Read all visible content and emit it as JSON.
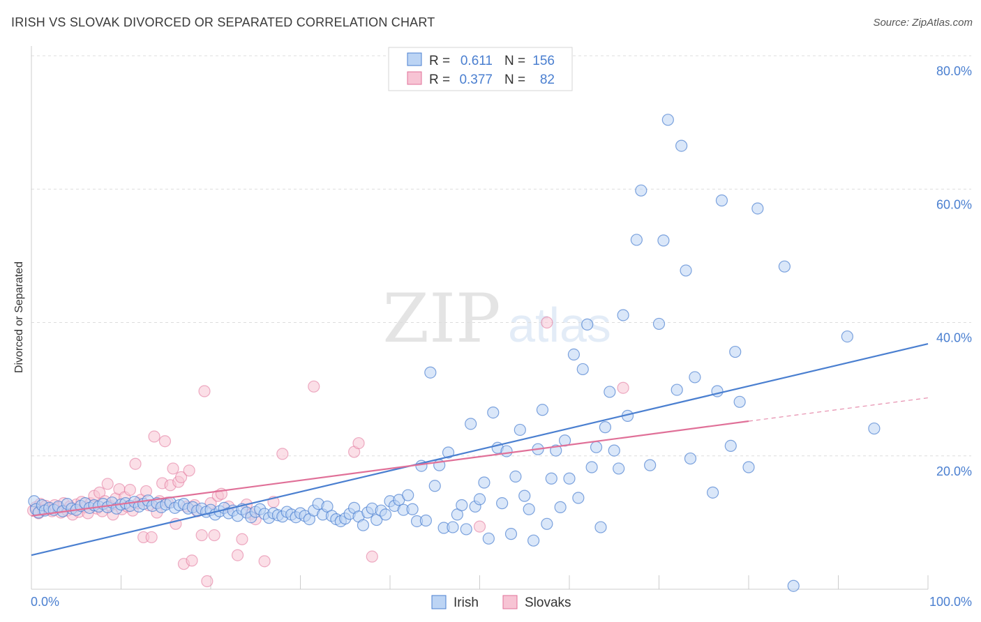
{
  "header": {
    "title": "IRISH VS SLOVAK DIVORCED OR SEPARATED CORRELATION CHART",
    "source": "Source: ZipAtlas.com"
  },
  "watermark": {
    "zip": "ZIP",
    "atlas": "atlas"
  },
  "legend": {
    "rows": [
      {
        "r_label": "R =",
        "r_value": "0.611",
        "n_label": "N =",
        "n_value": "156"
      },
      {
        "r_label": "R =",
        "r_value": "0.377",
        "n_label": "N =",
        "n_value": "82"
      }
    ]
  },
  "bottom_legend": {
    "irish": "Irish",
    "slovaks": "Slovaks"
  },
  "chart_data": {
    "type": "scatter",
    "title": "IRISH VS SLOVAK DIVORCED OR SEPARATED CORRELATION CHART",
    "xlabel": "",
    "ylabel": "Divorced or Separated",
    "xlim": [
      0,
      100
    ],
    "ylim": [
      0,
      80
    ],
    "y_ticks": [
      "20.0%",
      "40.0%",
      "60.0%",
      "80.0%"
    ],
    "x_tick_labels": [
      "0.0%",
      "100.0%"
    ],
    "grid": true,
    "legend_position": "top-center",
    "colors": {
      "irish": "#4a7fd0",
      "irish_fill": "#bcd4f4",
      "slovaks": "#e07098",
      "slovaks_fill": "#f7c4d4",
      "tick": "#4a7fd0"
    },
    "series": [
      {
        "name": "Irish",
        "r": 0.611,
        "n": 156,
        "trend": [
          [
            0,
            5.1
          ],
          [
            100,
            36.8
          ]
        ],
        "points": [
          [
            0.3,
            13.2
          ],
          [
            0.5,
            12.0
          ],
          [
            0.8,
            11.5
          ],
          [
            1.2,
            12.6
          ],
          [
            1.5,
            11.8
          ],
          [
            2.0,
            12.2
          ],
          [
            2.5,
            11.9
          ],
          [
            3.0,
            12.4
          ],
          [
            3.5,
            11.7
          ],
          [
            4.0,
            12.8
          ],
          [
            4.5,
            12.1
          ],
          [
            5.0,
            11.9
          ],
          [
            5.5,
            12.5
          ],
          [
            6.0,
            12.9
          ],
          [
            6.5,
            12.2
          ],
          [
            7.0,
            12.6
          ],
          [
            7.5,
            12.4
          ],
          [
            8.0,
            12.8
          ],
          [
            8.5,
            12.3
          ],
          [
            9.0,
            13.0
          ],
          [
            9.5,
            12.1
          ],
          [
            10.0,
            12.7
          ],
          [
            10.5,
            12.9
          ],
          [
            11.0,
            12.5
          ],
          [
            11.5,
            13.1
          ],
          [
            12.0,
            12.4
          ],
          [
            12.5,
            12.8
          ],
          [
            13.0,
            13.3
          ],
          [
            13.5,
            12.5
          ],
          [
            14.0,
            12.9
          ],
          [
            14.5,
            12.3
          ],
          [
            15.0,
            12.7
          ],
          [
            15.5,
            13.0
          ],
          [
            16.0,
            12.2
          ],
          [
            16.5,
            12.6
          ],
          [
            17.0,
            12.8
          ],
          [
            17.5,
            12.1
          ],
          [
            18.0,
            12.3
          ],
          [
            18.5,
            11.8
          ],
          [
            19.0,
            12.1
          ],
          [
            19.5,
            11.6
          ],
          [
            20.0,
            11.9
          ],
          [
            20.5,
            11.2
          ],
          [
            21.0,
            11.7
          ],
          [
            21.5,
            12.2
          ],
          [
            22.0,
            11.4
          ],
          [
            22.5,
            11.8
          ],
          [
            23.0,
            11.0
          ],
          [
            23.5,
            12.0
          ],
          [
            24.0,
            11.5
          ],
          [
            24.5,
            10.8
          ],
          [
            25.0,
            11.6
          ],
          [
            25.5,
            12.0
          ],
          [
            26.0,
            11.3
          ],
          [
            26.5,
            10.7
          ],
          [
            27.0,
            11.4
          ],
          [
            27.5,
            11.1
          ],
          [
            28.0,
            10.9
          ],
          [
            28.5,
            11.6
          ],
          [
            29.0,
            11.2
          ],
          [
            29.5,
            10.8
          ],
          [
            30.0,
            11.4
          ],
          [
            30.5,
            11.0
          ],
          [
            31.0,
            10.5
          ],
          [
            31.5,
            11.8
          ],
          [
            32.0,
            12.8
          ],
          [
            32.5,
            11.2
          ],
          [
            33.0,
            12.4
          ],
          [
            33.5,
            11.0
          ],
          [
            34.0,
            10.5
          ],
          [
            34.5,
            10.2
          ],
          [
            35.0,
            10.6
          ],
          [
            35.5,
            11.3
          ],
          [
            36.0,
            12.2
          ],
          [
            36.5,
            10.9
          ],
          [
            37.0,
            9.6
          ],
          [
            37.5,
            11.5
          ],
          [
            38.0,
            12.1
          ],
          [
            38.5,
            10.4
          ],
          [
            39.0,
            11.8
          ],
          [
            39.5,
            11.2
          ],
          [
            40.0,
            13.2
          ],
          [
            40.5,
            12.5
          ],
          [
            41.0,
            13.4
          ],
          [
            41.5,
            11.9
          ],
          [
            42.0,
            14.1
          ],
          [
            42.5,
            12.0
          ],
          [
            43.0,
            10.2
          ],
          [
            43.5,
            18.5
          ],
          [
            44.0,
            10.3
          ],
          [
            44.5,
            32.5
          ],
          [
            45.0,
            15.5
          ],
          [
            45.5,
            18.6
          ],
          [
            46.0,
            9.2
          ],
          [
            46.5,
            20.5
          ],
          [
            47.0,
            9.3
          ],
          [
            47.5,
            11.2
          ],
          [
            48.0,
            12.6
          ],
          [
            48.5,
            9.0
          ],
          [
            49.0,
            24.8
          ],
          [
            49.5,
            12.4
          ],
          [
            50.0,
            13.5
          ],
          [
            50.5,
            16.0
          ],
          [
            51.0,
            7.6
          ],
          [
            51.5,
            26.5
          ],
          [
            52.0,
            21.2
          ],
          [
            52.5,
            12.9
          ],
          [
            53.0,
            20.7
          ],
          [
            53.5,
            8.3
          ],
          [
            54.0,
            16.9
          ],
          [
            54.5,
            23.9
          ],
          [
            55.0,
            14.0
          ],
          [
            55.5,
            12.0
          ],
          [
            56.0,
            7.3
          ],
          [
            56.5,
            21.0
          ],
          [
            57.0,
            26.9
          ],
          [
            57.5,
            9.8
          ],
          [
            58.0,
            16.6
          ],
          [
            58.5,
            20.8
          ],
          [
            59.0,
            12.3
          ],
          [
            59.5,
            22.3
          ],
          [
            60.0,
            16.6
          ],
          [
            60.5,
            35.2
          ],
          [
            61.0,
            13.7
          ],
          [
            61.5,
            33.0
          ],
          [
            62.0,
            39.7
          ],
          [
            62.5,
            18.3
          ],
          [
            63.0,
            21.3
          ],
          [
            63.5,
            9.3
          ],
          [
            64.0,
            24.3
          ],
          [
            64.5,
            29.6
          ],
          [
            65.0,
            20.8
          ],
          [
            65.5,
            18.1
          ],
          [
            66.0,
            41.1
          ],
          [
            66.5,
            26.0
          ],
          [
            67.5,
            52.4
          ],
          [
            68.0,
            59.8
          ],
          [
            69.0,
            18.6
          ],
          [
            70.0,
            39.8
          ],
          [
            70.5,
            52.3
          ],
          [
            71.0,
            70.4
          ],
          [
            72.0,
            29.9
          ],
          [
            72.5,
            66.5
          ],
          [
            73.0,
            47.8
          ],
          [
            73.5,
            19.6
          ],
          [
            74.0,
            31.8
          ],
          [
            76.0,
            14.5
          ],
          [
            76.5,
            29.7
          ],
          [
            77.0,
            58.3
          ],
          [
            78.0,
            21.5
          ],
          [
            78.5,
            35.6
          ],
          [
            79.0,
            28.1
          ],
          [
            80.0,
            18.3
          ],
          [
            81.0,
            57.1
          ],
          [
            84.0,
            48.4
          ],
          [
            85.0,
            0.5
          ],
          [
            91.0,
            37.9
          ],
          [
            94.0,
            24.1
          ]
        ]
      },
      {
        "name": "Slovaks",
        "r": 0.377,
        "n": 82,
        "trend": [
          [
            0,
            11.0
          ],
          [
            80,
            25.2
          ]
        ],
        "trend_dashed": [
          [
            80,
            25.2
          ],
          [
            100,
            28.7
          ]
        ],
        "points": [
          [
            0.2,
            11.8
          ],
          [
            0.5,
            12.3
          ],
          [
            0.8,
            11.4
          ],
          [
            1.0,
            12.8
          ],
          [
            1.3,
            11.9
          ],
          [
            1.6,
            12.5
          ],
          [
            2.0,
            12.0
          ],
          [
            2.3,
            11.7
          ],
          [
            2.6,
            12.6
          ],
          [
            3.0,
            12.2
          ],
          [
            3.3,
            11.5
          ],
          [
            3.6,
            12.9
          ],
          [
            4.0,
            11.8
          ],
          [
            4.3,
            12.4
          ],
          [
            4.6,
            11.2
          ],
          [
            5.0,
            12.7
          ],
          [
            5.3,
            11.6
          ],
          [
            5.6,
            13.1
          ],
          [
            6.0,
            12.3
          ],
          [
            6.3,
            11.4
          ],
          [
            6.6,
            12.9
          ],
          [
            7.0,
            14.0
          ],
          [
            7.3,
            12.1
          ],
          [
            7.6,
            14.5
          ],
          [
            7.9,
            11.7
          ],
          [
            8.2,
            13.2
          ],
          [
            8.5,
            15.8
          ],
          [
            8.8,
            12.5
          ],
          [
            9.1,
            11.2
          ],
          [
            9.4,
            13.6
          ],
          [
            9.8,
            15.0
          ],
          [
            10.1,
            12.0
          ],
          [
            10.4,
            13.8
          ],
          [
            10.7,
            12.4
          ],
          [
            11.0,
            14.9
          ],
          [
            11.3,
            11.8
          ],
          [
            11.6,
            18.8
          ],
          [
            11.9,
            12.9
          ],
          [
            12.2,
            13.4
          ],
          [
            12.5,
            7.8
          ],
          [
            12.8,
            14.7
          ],
          [
            13.1,
            12.6
          ],
          [
            13.4,
            7.8
          ],
          [
            13.7,
            22.9
          ],
          [
            14.0,
            11.5
          ],
          [
            14.3,
            13.2
          ],
          [
            14.6,
            15.9
          ],
          [
            14.9,
            22.2
          ],
          [
            15.2,
            13.0
          ],
          [
            15.5,
            15.6
          ],
          [
            15.8,
            18.1
          ],
          [
            16.1,
            9.8
          ],
          [
            16.4,
            16.1
          ],
          [
            16.7,
            16.8
          ],
          [
            17.0,
            3.8
          ],
          [
            17.3,
            12.4
          ],
          [
            17.6,
            17.8
          ],
          [
            17.9,
            4.3
          ],
          [
            18.2,
            12.6
          ],
          [
            18.5,
            11.7
          ],
          [
            19.0,
            8.1
          ],
          [
            19.3,
            29.7
          ],
          [
            19.6,
            1.2
          ],
          [
            20.0,
            12.9
          ],
          [
            20.4,
            8.1
          ],
          [
            20.8,
            14.0
          ],
          [
            21.2,
            14.3
          ],
          [
            22.0,
            12.4
          ],
          [
            23.0,
            5.1
          ],
          [
            23.5,
            7.5
          ],
          [
            24.0,
            12.7
          ],
          [
            24.5,
            11.3
          ],
          [
            25.0,
            10.5
          ],
          [
            26.0,
            4.2
          ],
          [
            27.0,
            13.1
          ],
          [
            28.0,
            20.3
          ],
          [
            31.5,
            30.4
          ],
          [
            36.0,
            20.6
          ],
          [
            36.5,
            21.9
          ],
          [
            38.0,
            4.9
          ],
          [
            50.0,
            9.4
          ],
          [
            57.5,
            40.0
          ],
          [
            66.0,
            30.2
          ]
        ]
      }
    ]
  }
}
